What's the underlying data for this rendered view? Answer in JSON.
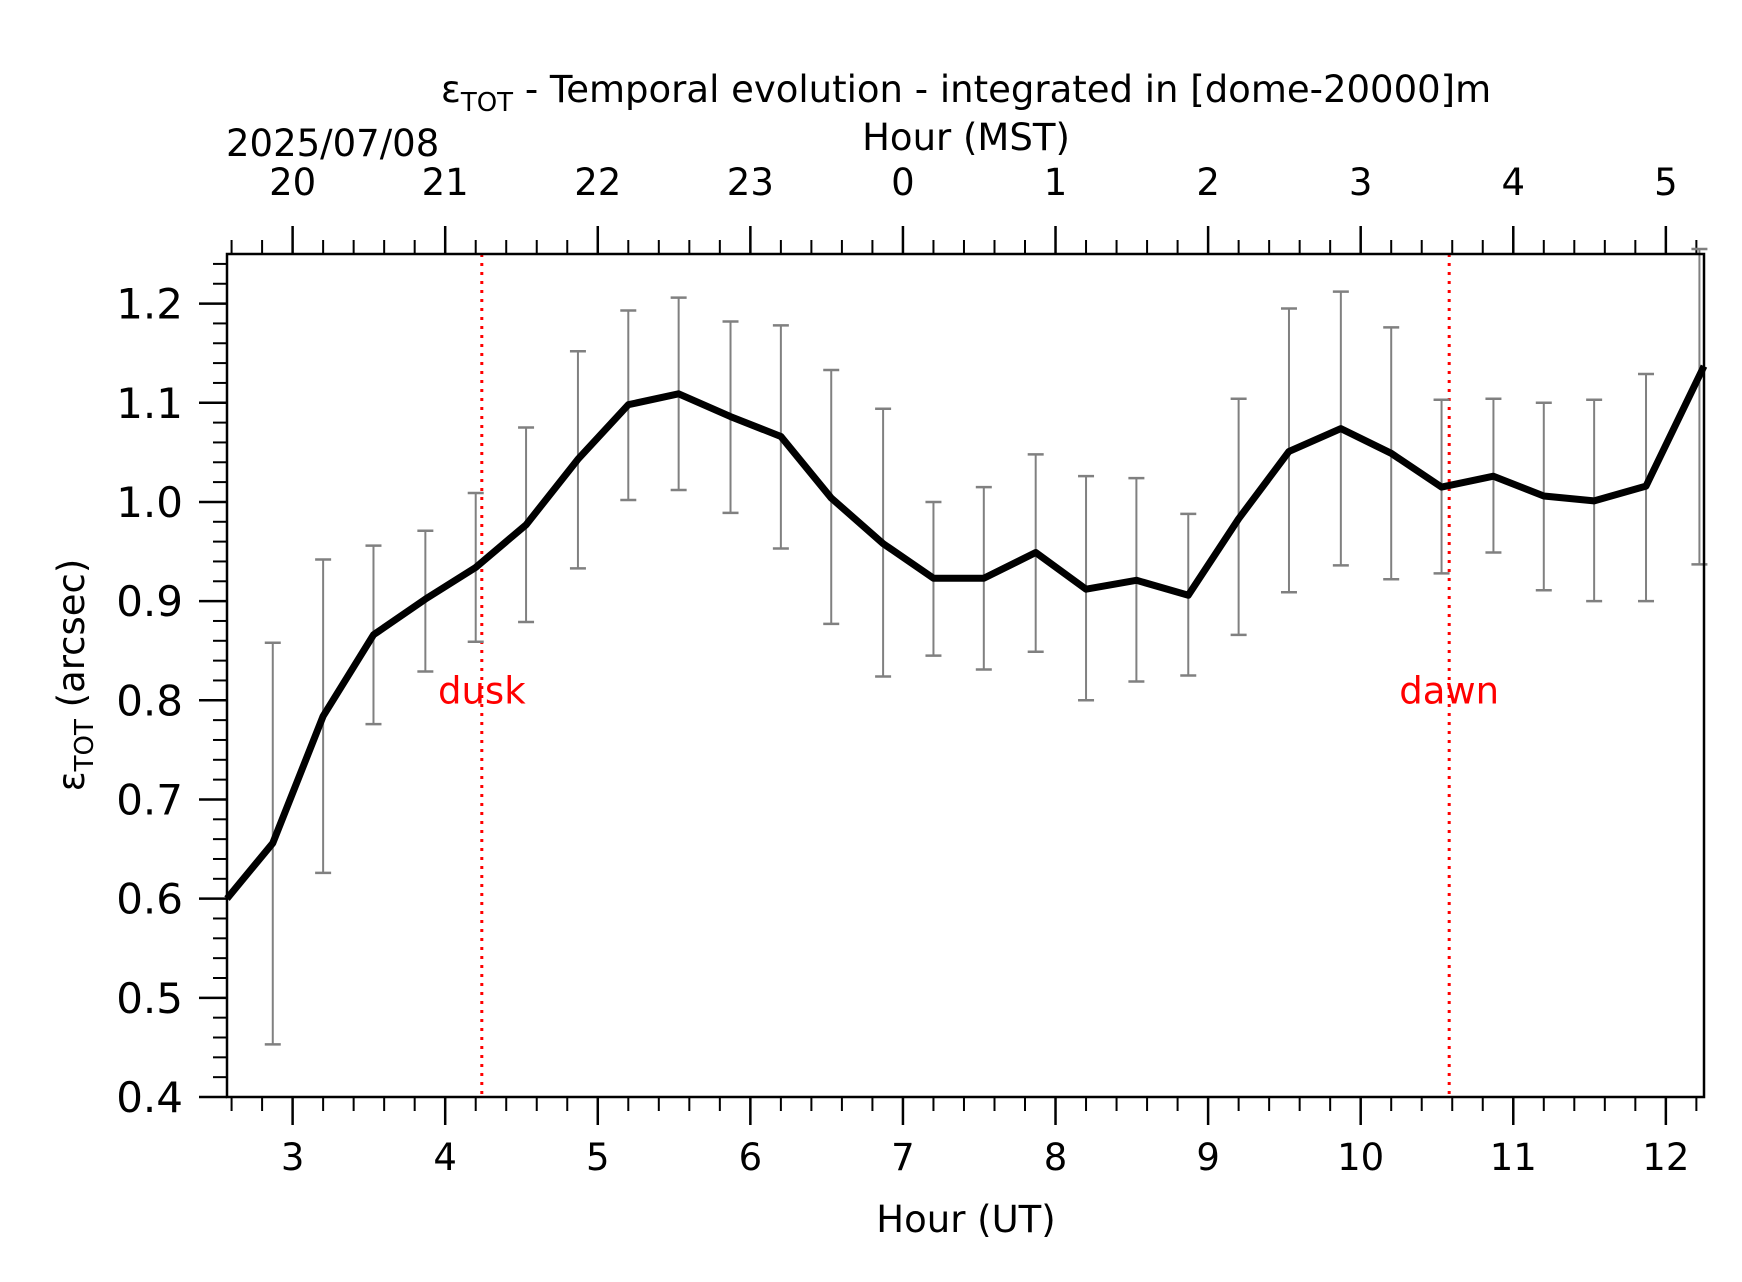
{
  "chart_data": {
    "type": "line",
    "title_prefix": "ε",
    "title_subscript": "TOT",
    "title_rest": " - Temporal evolution - integrated in [dome-20000]m",
    "xlabel": "Hour (UT)",
    "ylabel_prefix": "ε",
    "ylabel_subscript": "TOT",
    "ylabel_rest": " (arcsec)",
    "top_xlabel": "Hour (MST)",
    "top_date": "2025/07/08",
    "xlim": [
      2.57,
      12.25
    ],
    "ylim": [
      0.4,
      1.25
    ],
    "x_ticks": [
      "3",
      "4",
      "5",
      "6",
      "7",
      "8",
      "9",
      "10",
      "11",
      "12"
    ],
    "top_ticks": [
      "20",
      "21",
      "22",
      "23",
      "0",
      "1",
      "2",
      "3",
      "4",
      "5"
    ],
    "y_ticks": [
      "0.4",
      "0.5",
      "0.6",
      "0.7",
      "0.8",
      "0.9",
      "1.0",
      "1.1",
      "1.2"
    ],
    "line_color": "#000000",
    "errorbar_color": "#808080",
    "event_color": "#ff0000",
    "series": [
      {
        "x": [
          2.57,
          2.87,
          3.2,
          3.53,
          3.87,
          4.2,
          4.53,
          4.87,
          5.2,
          5.53,
          5.87,
          6.2,
          6.53,
          6.87,
          7.2,
          7.53,
          7.87,
          8.2,
          8.53,
          8.87,
          9.2,
          9.53,
          9.87,
          10.2,
          10.53,
          10.87,
          11.2,
          11.53,
          11.87,
          12.25
        ],
        "y": [
          0.6,
          0.656,
          0.784,
          0.866,
          0.902,
          0.934,
          0.977,
          1.043,
          1.098,
          1.109,
          1.086,
          1.066,
          1.004,
          0.958,
          0.923,
          0.923,
          0.949,
          0.912,
          0.921,
          0.906,
          0.983,
          1.051,
          1.074,
          1.049,
          1.015,
          1.026,
          1.006,
          1.001,
          1.016,
          1.137
        ],
        "errors": [
          {
            "x": 2.87,
            "low": 0.453,
            "high": 0.858
          },
          {
            "x": 3.2,
            "low": 0.626,
            "high": 0.942
          },
          {
            "x": 3.53,
            "low": 0.776,
            "high": 0.956
          },
          {
            "x": 3.87,
            "low": 0.829,
            "high": 0.971
          },
          {
            "x": 4.2,
            "low": 0.859,
            "high": 1.009
          },
          {
            "x": 4.53,
            "low": 0.879,
            "high": 1.075
          },
          {
            "x": 4.87,
            "low": 0.933,
            "high": 1.152
          },
          {
            "x": 5.2,
            "low": 1.002,
            "high": 1.193
          },
          {
            "x": 5.53,
            "low": 1.012,
            "high": 1.206
          },
          {
            "x": 5.87,
            "low": 0.989,
            "high": 1.182
          },
          {
            "x": 6.2,
            "low": 0.953,
            "high": 1.178
          },
          {
            "x": 6.53,
            "low": 0.877,
            "high": 1.133
          },
          {
            "x": 6.87,
            "low": 0.824,
            "high": 1.094
          },
          {
            "x": 7.2,
            "low": 0.845,
            "high": 1.0
          },
          {
            "x": 7.53,
            "low": 0.831,
            "high": 1.015
          },
          {
            "x": 7.87,
            "low": 0.849,
            "high": 1.048
          },
          {
            "x": 8.2,
            "low": 0.8,
            "high": 1.026
          },
          {
            "x": 8.53,
            "low": 0.819,
            "high": 1.024
          },
          {
            "x": 8.87,
            "low": 0.825,
            "high": 0.988
          },
          {
            "x": 9.2,
            "low": 0.866,
            "high": 1.104
          },
          {
            "x": 9.53,
            "low": 0.909,
            "high": 1.195
          },
          {
            "x": 9.87,
            "low": 0.936,
            "high": 1.212
          },
          {
            "x": 10.2,
            "low": 0.922,
            "high": 1.176
          },
          {
            "x": 10.53,
            "low": 0.928,
            "high": 1.103
          },
          {
            "x": 10.87,
            "low": 0.949,
            "high": 1.104
          },
          {
            "x": 11.2,
            "low": 0.911,
            "high": 1.1
          },
          {
            "x": 11.53,
            "low": 0.9,
            "high": 1.103
          },
          {
            "x": 11.87,
            "low": 0.9,
            "high": 1.129
          },
          {
            "x": 12.22,
            "low": 0.937,
            "high": 1.255
          }
        ]
      }
    ],
    "events": [
      {
        "label": "dusk",
        "x": 4.24
      },
      {
        "label": "dawn",
        "x": 10.58
      }
    ]
  }
}
